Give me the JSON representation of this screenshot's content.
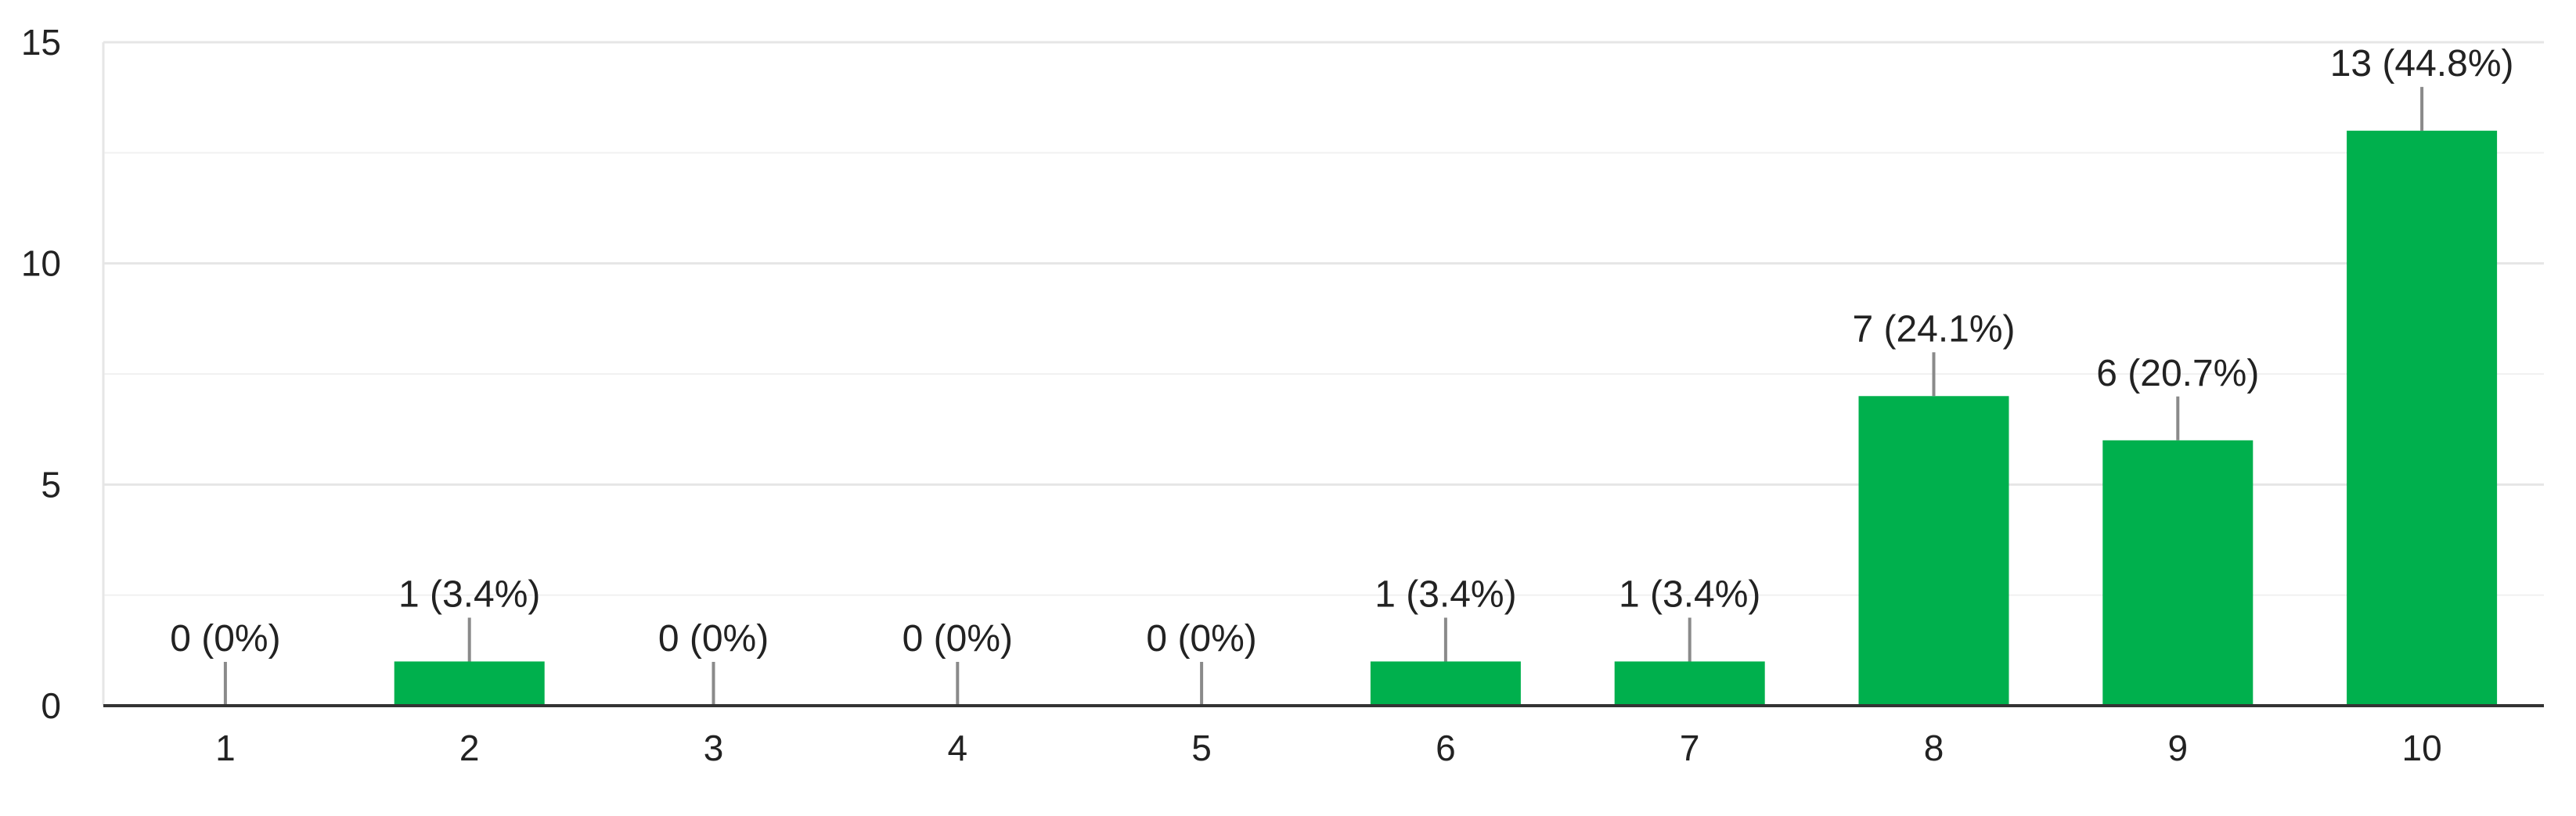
{
  "chart_data": {
    "type": "bar",
    "title": "",
    "xlabel": "",
    "ylabel": "",
    "categories": [
      "1",
      "2",
      "3",
      "4",
      "5",
      "6",
      "7",
      "8",
      "9",
      "10"
    ],
    "values": [
      0,
      1,
      0,
      0,
      0,
      1,
      1,
      7,
      6,
      13
    ],
    "data_labels": [
      "0 (0%)",
      "1 (3.4%)",
      "0 (0%)",
      "0 (0%)",
      "0 (0%)",
      "1 (3.4%)",
      "1 (3.4%)",
      "7 (24.1%)",
      "6 (20.7%)",
      "13 (44.8%)"
    ],
    "ylim": [
      0,
      15
    ],
    "yticks": [
      0,
      5,
      10,
      15
    ],
    "y_minor_ticks": [
      2.5,
      7.5,
      12.5
    ],
    "grid": true,
    "legend": "none",
    "bar_color": "#00b04d"
  }
}
